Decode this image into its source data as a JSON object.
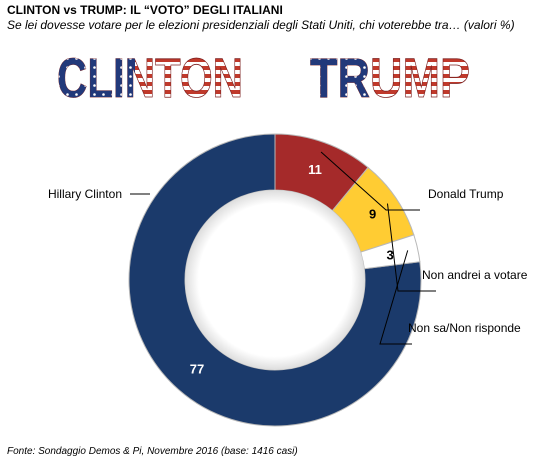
{
  "title": "CLINTON vs TRUMP: IL “VOTO” DEGLI ITALIANI",
  "subtitle": "Se lei dovesse votare per le elezioni presidenziali degli Stati Uniti, chi voterebbe tra… (valori %)",
  "banner": {
    "left_word": "CLINTON",
    "right_word": "TRUMP"
  },
  "chart_data": {
    "type": "pie",
    "variant": "donut",
    "categories": [
      "Hillary Clinton",
      "Donald Trump",
      "Non andrei a votare",
      "Non sa/Non risponde"
    ],
    "values": [
      77,
      11,
      9,
      3
    ],
    "data_labels": [
      "77",
      "11",
      "9",
      "3"
    ],
    "colors": [
      "#1b3a6b",
      "#a52a2a",
      "#ffcc33",
      "#ffffff"
    ],
    "title": ""
  },
  "source": "Fonte: Sondaggio Demos & Pi, Novembre 2016 (base: 1416 casi)"
}
